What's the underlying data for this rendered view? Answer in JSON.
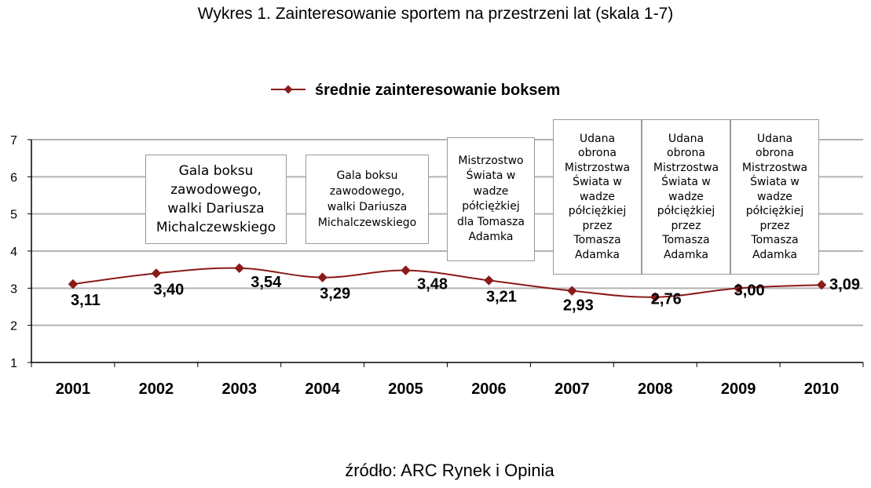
{
  "title": "Wykres 1. Zainteresowanie sportem na przestrzeni lat (skala 1-7)",
  "source": "źródło: ARC Rynek i Opinia",
  "colors": {
    "series": "#8b1a1a",
    "grid": "#b3b3b3",
    "axis": "#000000"
  },
  "chart_data": {
    "type": "line",
    "title": "Wykres 1. Zainteresowanie sportem na przestrzeni lat (skala 1-7)",
    "xlabel": "",
    "ylabel": "",
    "ylim": [
      1,
      7
    ],
    "yticks": [
      1,
      2,
      3,
      4,
      5,
      6,
      7
    ],
    "grid": true,
    "legend": "top-center",
    "categories": [
      "2001",
      "2002",
      "2003",
      "2004",
      "2005",
      "2006",
      "2007",
      "2008",
      "2009",
      "2010"
    ],
    "series": [
      {
        "name": "średnie zainteresowanie boksem",
        "values": [
          3.11,
          3.4,
          3.54,
          3.29,
          3.48,
          3.21,
          2.93,
          2.76,
          3.0,
          3.09
        ],
        "labels": [
          "3,11",
          "3,40",
          "3,54",
          "3,29",
          "3,48",
          "3,21",
          "2,93",
          "2,76",
          "3,00",
          "3,09"
        ]
      }
    ],
    "annotations": [
      {
        "lines": [
          "Gala boksu",
          "zawodowego,",
          "walki Dariusza",
          "Michalczewskiego"
        ]
      },
      {
        "lines": [
          "Gala boksu",
          "zawodowego,",
          "walki Dariusza",
          "Michalczewskiego"
        ]
      },
      {
        "lines": [
          "Mistrzostwo",
          "Świata w",
          "wadze",
          "półciężkiej",
          "dla Tomasza",
          "Adamka"
        ]
      },
      {
        "lines": [
          "Udana",
          "obrona",
          "Mistrzostwa",
          "Świata w",
          "wadze",
          "półciężkiej",
          "przez",
          "Tomasza",
          "Adamka"
        ]
      },
      {
        "lines": [
          "Udana",
          "obrona",
          "Mistrzostwa",
          "Świata w",
          "wadze",
          "półciężkiej",
          "przez",
          "Tomasza",
          "Adamka"
        ]
      },
      {
        "lines": [
          "Udana",
          "obrona",
          "Mistrzostwa",
          "Świata w",
          "wadze",
          "półciężkiej",
          "przez",
          "Tomasza",
          "Adamka"
        ]
      }
    ]
  }
}
